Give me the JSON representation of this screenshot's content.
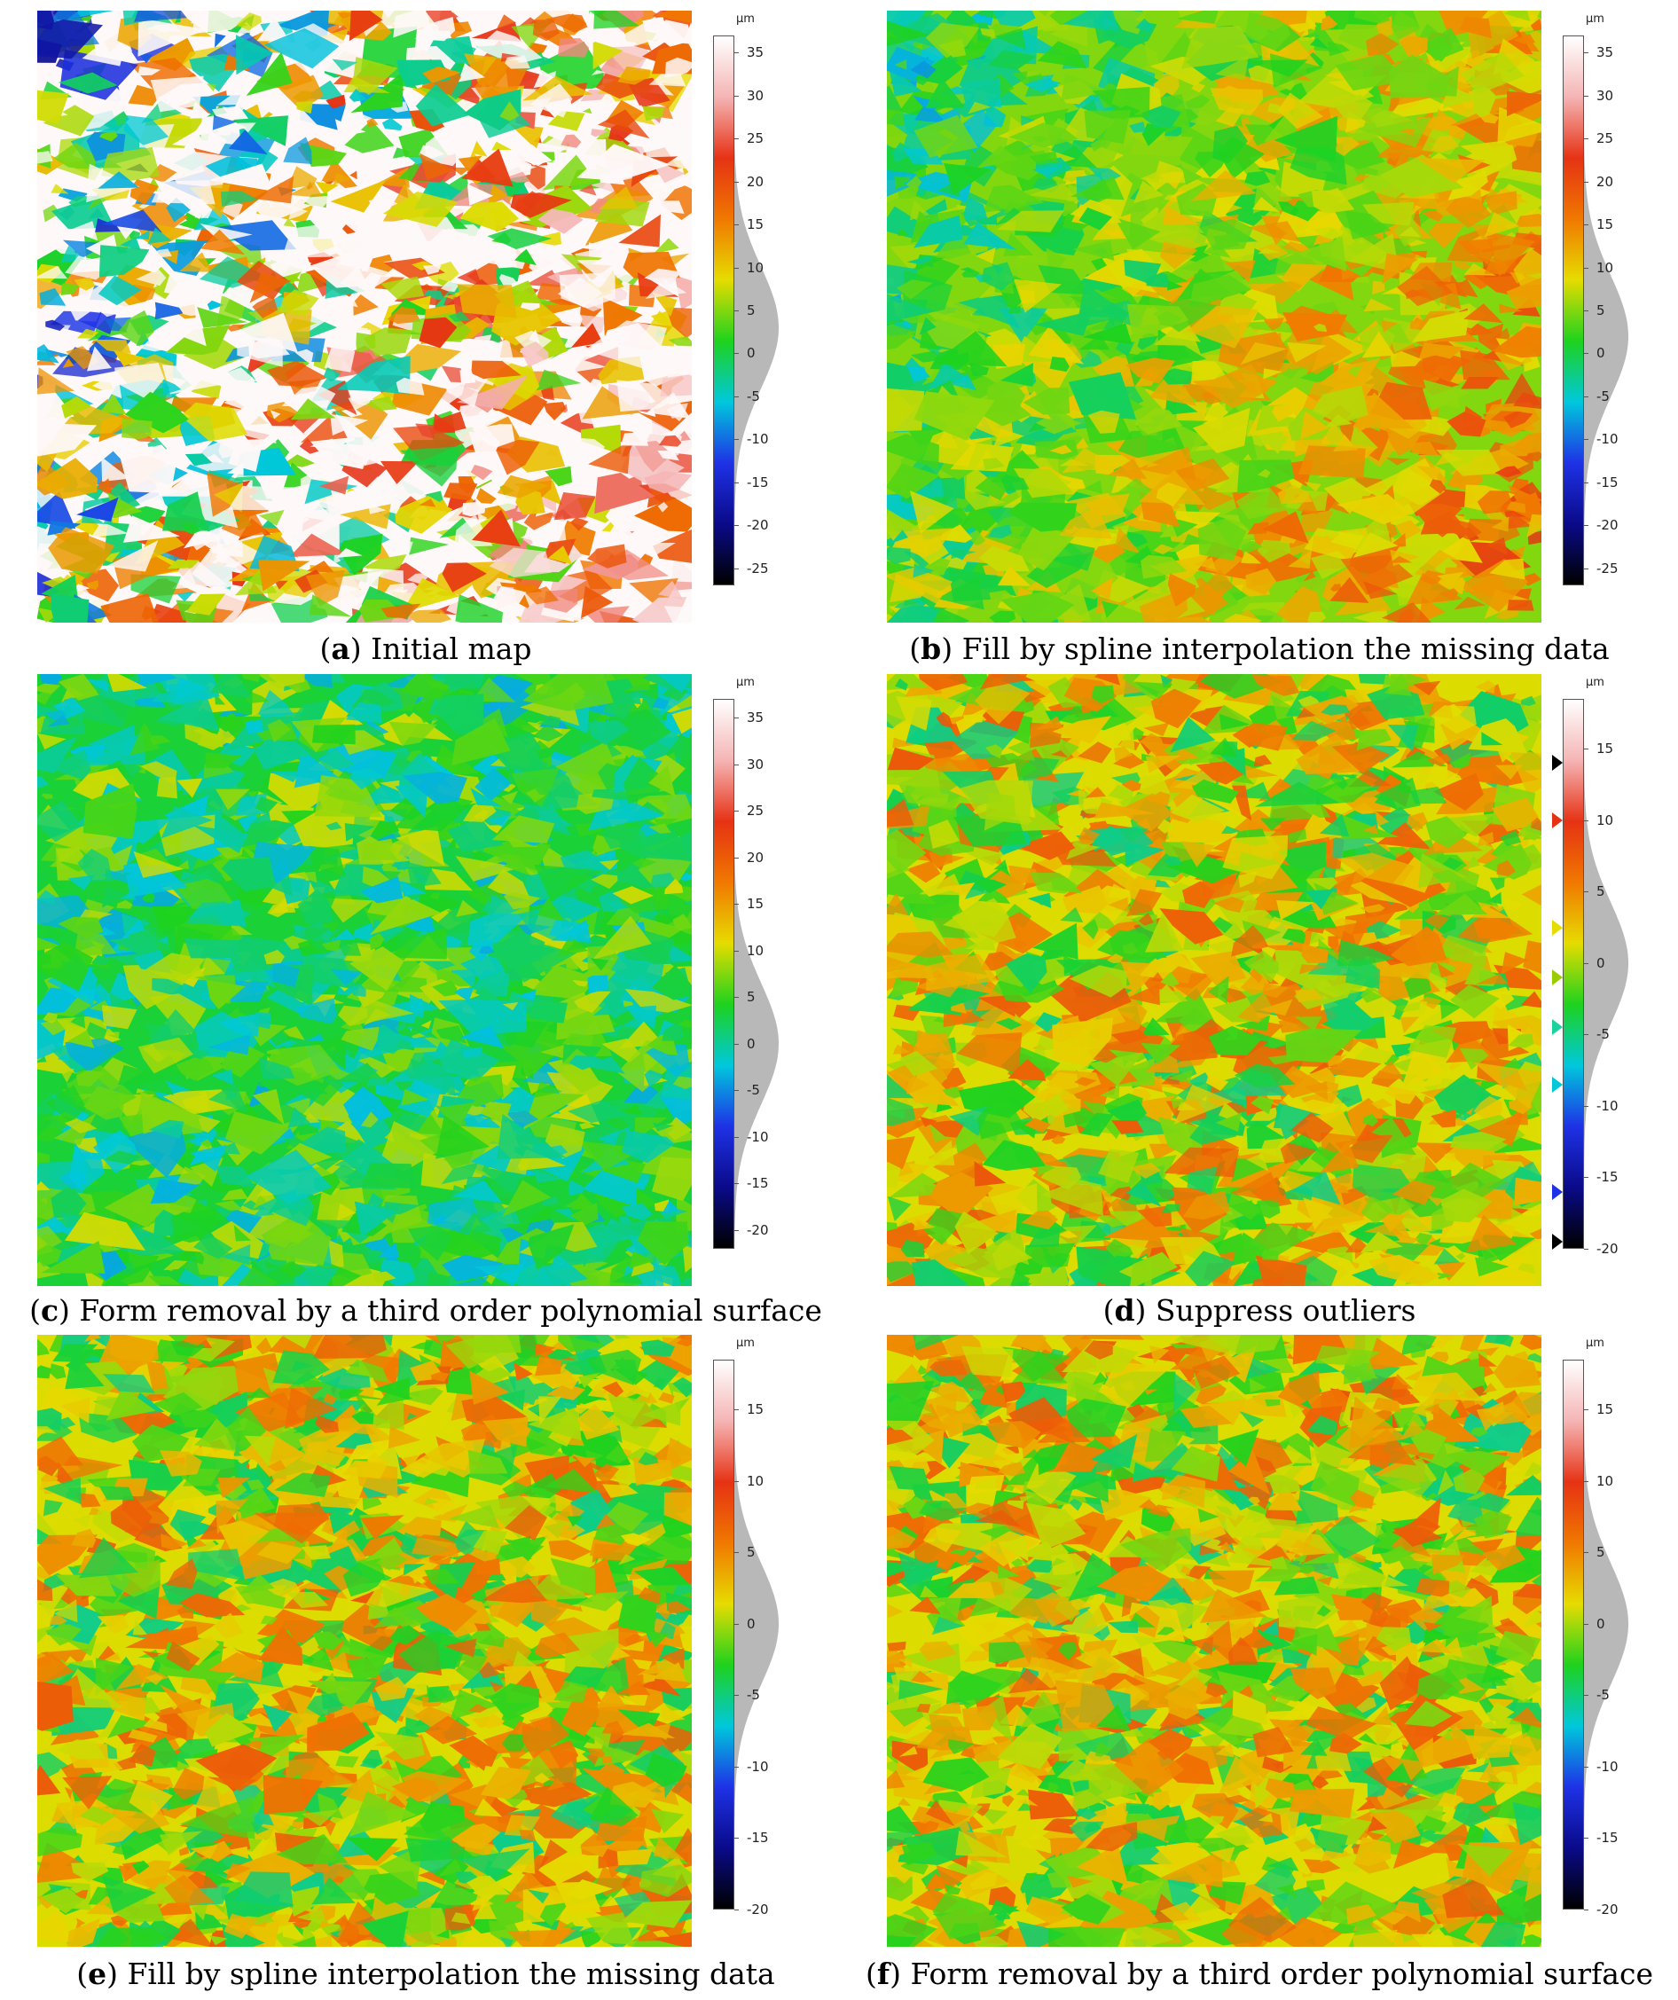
{
  "figure": {
    "panels": [
      {
        "id": "a",
        "letter": "a",
        "title": "Initial map",
        "unit": "µm",
        "ticks": [
          "35",
          "30",
          "25",
          "20",
          "15",
          "10",
          "5",
          "0",
          "-5",
          "-10",
          "-15",
          "-20",
          "-25"
        ],
        "range": [
          -27,
          37
        ],
        "colormap": "white-missing",
        "has_markers": false
      },
      {
        "id": "b",
        "letter": "b",
        "title": "Fill by spline interpolation the missing data",
        "unit": "µm",
        "ticks": [
          "35",
          "30",
          "25",
          "20",
          "15",
          "10",
          "5",
          "0",
          "-5",
          "-10",
          "-15",
          "-20",
          "-25"
        ],
        "range": [
          -27,
          37
        ],
        "colormap": "filled",
        "has_markers": false
      },
      {
        "id": "c",
        "letter": "c",
        "title": "Form removal by a third order polynomial surface",
        "unit": "µm",
        "ticks": [
          "35",
          "30",
          "25",
          "20",
          "15",
          "10",
          "5",
          "0",
          "-5",
          "-10",
          "-15",
          "-20"
        ],
        "range": [
          -22,
          37
        ],
        "colormap": "flattened",
        "has_markers": false
      },
      {
        "id": "d",
        "letter": "d",
        "title": "Suppress outliers",
        "unit": "µm",
        "ticks": [
          "15",
          "10",
          "5",
          "0",
          "-5",
          "-10",
          "-15",
          "-20"
        ],
        "range": [
          -20,
          18.5
        ],
        "colormap": "outliers",
        "has_markers": true
      },
      {
        "id": "e",
        "letter": "e",
        "title": "Fill by spline interpolation the missing data",
        "unit": "µm",
        "ticks": [
          "15",
          "10",
          "5",
          "0",
          "-5",
          "-10",
          "-15",
          "-20"
        ],
        "range": [
          -20,
          18.5
        ],
        "colormap": "outliers",
        "has_markers": false
      },
      {
        "id": "f",
        "letter": "f",
        "title": "Form removal by a third order polynomial surface",
        "unit": "µm",
        "ticks": [
          "15",
          "10",
          "5",
          "0",
          "-5",
          "-10",
          "-15",
          "-20"
        ],
        "range": [
          -20,
          18.5
        ],
        "colormap": "outliers",
        "has_markers": false
      }
    ],
    "palette": {
      "black": "#000000",
      "navy": "#0a0a8a",
      "blue": "#1e32e6",
      "cyan": "#00c8dc",
      "green": "#1ed21e",
      "yellow": "#e6dc00",
      "orange": "#f07800",
      "red": "#e63214",
      "pink": "#f5b4b4",
      "white": "#ffffff",
      "histogram": "#b8b8b8"
    },
    "markers_d": {
      "colors": [
        "#000000",
        "#e63214",
        "#e6dc00",
        "#9acd00",
        "#1ed2a0",
        "#00c8dc",
        "#1e32e6",
        "#000000"
      ],
      "values": [
        14,
        10,
        2.5,
        -1,
        -4.5,
        -8.5,
        -16,
        -19.5
      ]
    }
  }
}
